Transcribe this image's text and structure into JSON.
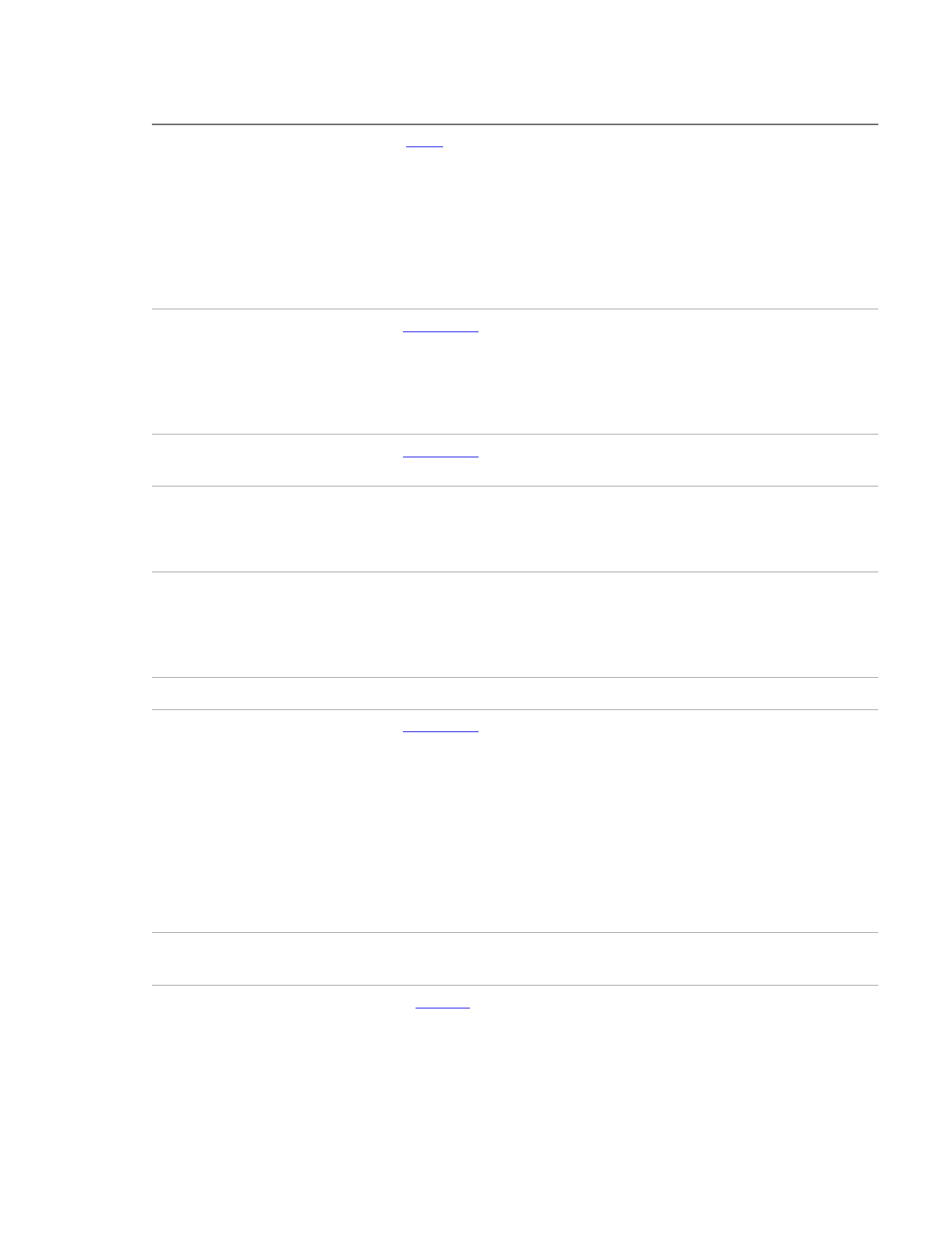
{
  "document": {
    "table": {
      "rows": [
        {
          "has_link": true
        },
        {
          "has_link": true
        },
        {
          "has_link": true
        },
        {
          "has_link": false
        },
        {
          "has_link": false
        },
        {
          "has_link": false
        },
        {
          "has_link": true
        },
        {
          "has_link": false
        },
        {
          "has_link": true
        }
      ]
    },
    "colors": {
      "header_rule": "#6e6e6e",
      "row_rule": "#a7a7a7",
      "link": "#1a1ae6"
    }
  }
}
